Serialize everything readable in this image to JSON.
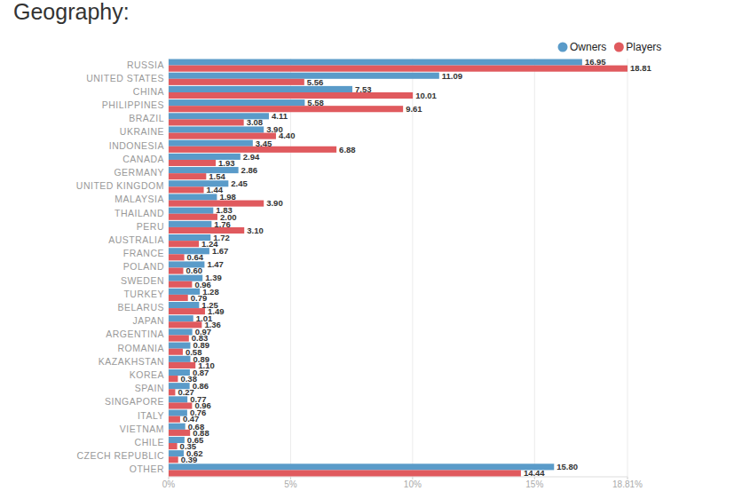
{
  "chart_data": {
    "type": "bar",
    "orientation": "horizontal",
    "title": "Geography:",
    "categories": [
      "RUSSIA",
      "UNITED STATES",
      "CHINA",
      "PHILIPPINES",
      "BRAZIL",
      "UKRAINE",
      "INDONESIA",
      "CANADA",
      "GERMANY",
      "UNITED KINGDOM",
      "MALAYSIA",
      "THAILAND",
      "PERU",
      "AUSTRALIA",
      "FRANCE",
      "POLAND",
      "SWEDEN",
      "TURKEY",
      "BELARUS",
      "JAPAN",
      "ARGENTINA",
      "ROMANIA",
      "KAZAKHSTAN",
      "KOREA",
      "SPAIN",
      "SINGAPORE",
      "ITALY",
      "VIETNAM",
      "CHILE",
      "CZECH REPUBLIC",
      "OTHER"
    ],
    "series": [
      {
        "name": "Owners",
        "color": "#5a9bc9",
        "values": [
          16.95,
          11.09,
          7.53,
          5.58,
          4.11,
          3.9,
          3.45,
          2.94,
          2.86,
          2.45,
          1.98,
          1.83,
          1.76,
          1.72,
          1.67,
          1.47,
          1.39,
          1.28,
          1.25,
          1.01,
          0.97,
          0.89,
          0.89,
          0.87,
          0.86,
          0.77,
          0.76,
          0.68,
          0.65,
          0.62,
          15.8
        ],
        "value_labels": [
          "16.95",
          "11.09",
          "7.53",
          "5.58",
          "4.11",
          "3.90",
          "3.45",
          "2.94",
          "2.86",
          "2.45",
          "1.98",
          "1.83",
          "1.76",
          "1.72",
          "1.67",
          "1.47",
          "1.39",
          "1.28",
          "1.25",
          "1.01",
          "0.97",
          "0.89",
          "0.89",
          "0.87",
          "0.86",
          "0.77",
          "0.76",
          "0.68",
          "0.65",
          "0.62",
          "15.80"
        ]
      },
      {
        "name": "Players",
        "color": "#e05a5e",
        "values": [
          18.81,
          5.56,
          10.01,
          9.61,
          3.08,
          4.4,
          6.88,
          1.93,
          1.54,
          1.44,
          3.9,
          2.0,
          3.1,
          1.24,
          0.64,
          0.6,
          0.96,
          0.79,
          1.49,
          1.36,
          0.83,
          0.58,
          1.1,
          0.38,
          0.27,
          0.96,
          0.47,
          0.88,
          0.35,
          0.39,
          14.44
        ],
        "value_labels": [
          "18.81",
          "5.56",
          "10.01",
          "9.61",
          "3.08",
          "4.40",
          "6.88",
          "1.93",
          "1.54",
          "1.44",
          "3.90",
          "2.00",
          "3.10",
          "1.24",
          "0.64",
          "0.60",
          "0.96",
          "0.79",
          "1.49",
          "1.36",
          "0.83",
          "0.58",
          "1.10",
          "0.38",
          "0.27",
          "0.96",
          "0.47",
          "0.88",
          "0.35",
          "0.39",
          "14.44"
        ]
      }
    ],
    "xlim": [
      0,
      18.81
    ],
    "xticks": [
      {
        "value": 0,
        "label": "0%"
      },
      {
        "value": 5,
        "label": "5%"
      },
      {
        "value": 10,
        "label": "10%"
      },
      {
        "value": 15,
        "label": "15%"
      },
      {
        "value": 18.81,
        "label": "18.81%"
      }
    ],
    "grid": true,
    "legend": "top-right",
    "data_labels": true
  }
}
